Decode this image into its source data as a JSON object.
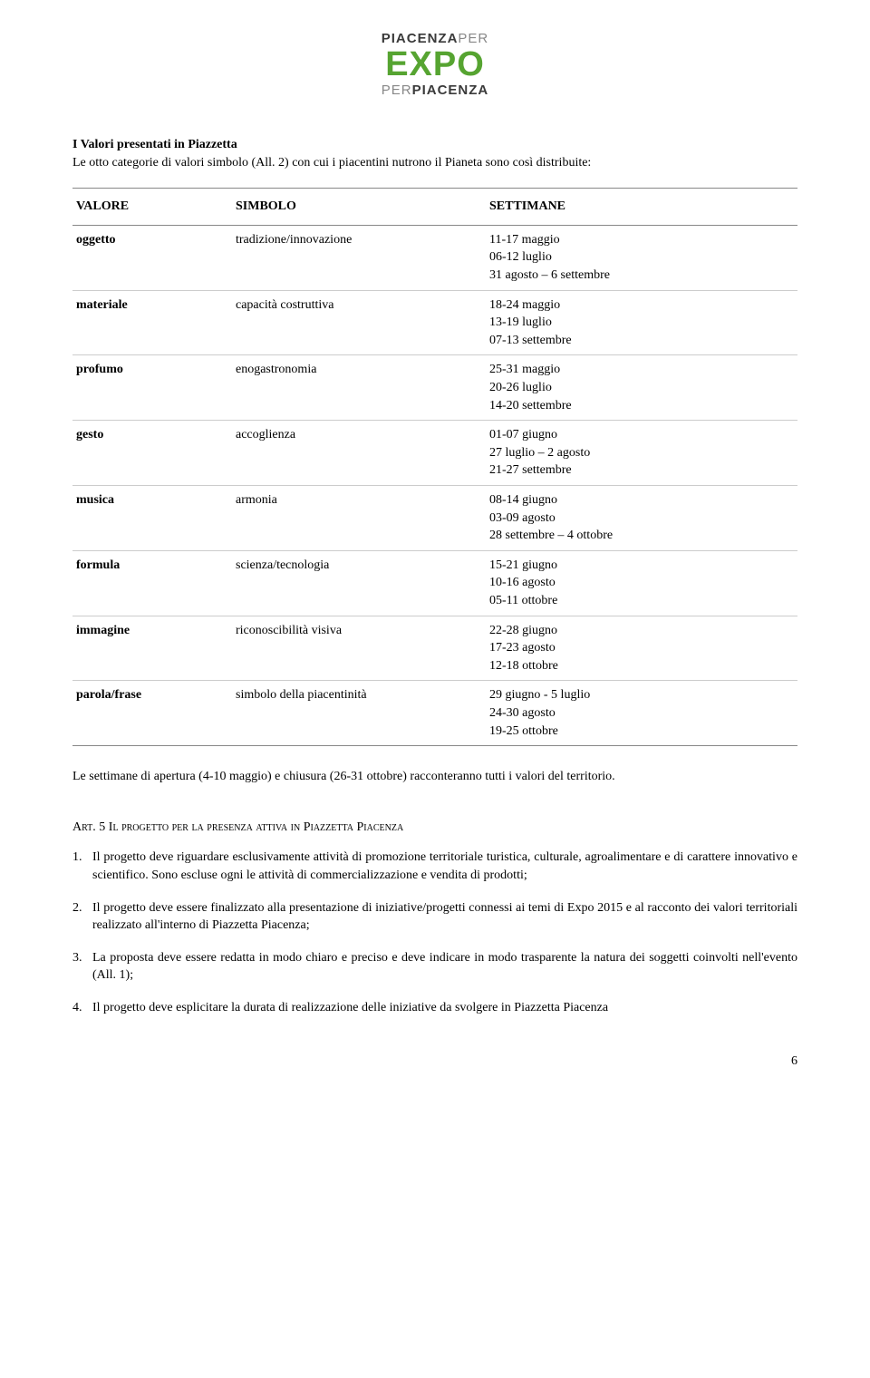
{
  "logo": {
    "line1_bold": "PIACENZA",
    "line1_light": "PER",
    "line2": "EXPO",
    "line3_light": "PER",
    "line3_bold": "PIACENZA"
  },
  "intro": {
    "title": "I Valori presentati in Piazzetta",
    "text": "Le otto categorie di valori simbolo (All. 2) con cui i piacentini nutrono il Pianeta sono così distribuite:"
  },
  "table": {
    "headers": [
      "VALORE",
      "SIMBOLO",
      "SETTIMANE"
    ],
    "rows": [
      {
        "valore": "oggetto",
        "simbolo": "tradizione/innovazione",
        "settimane": "11-17 maggio\n06-12 luglio\n31 agosto – 6 settembre"
      },
      {
        "valore": "materiale",
        "simbolo": "capacità costruttiva",
        "settimane": "18-24 maggio\n13-19 luglio\n07-13 settembre"
      },
      {
        "valore": "profumo",
        "simbolo": "enogastronomia",
        "settimane": "25-31 maggio\n20-26 luglio\n14-20 settembre"
      },
      {
        "valore": "gesto",
        "simbolo": "accoglienza",
        "settimane": "01-07 giugno\n27 luglio – 2 agosto\n21-27 settembre"
      },
      {
        "valore": "musica",
        "simbolo": "armonia",
        "settimane": "08-14 giugno\n03-09 agosto\n28 settembre – 4 ottobre"
      },
      {
        "valore": "formula",
        "simbolo": "scienza/tecnologia",
        "settimane": "15-21 giugno\n10-16 agosto\n05-11 ottobre"
      },
      {
        "valore": "immagine",
        "simbolo": "riconoscibilità visiva",
        "settimane": "22-28 giugno\n17-23 agosto\n12-18 ottobre"
      },
      {
        "valore": "parola/frase",
        "simbolo": "simbolo della piacentinità",
        "settimane": "29 giugno - 5 luglio\n24-30 agosto\n19-25 ottobre"
      }
    ]
  },
  "note": "Le settimane di apertura (4-10 maggio) e chiusura (26-31 ottobre) racconteranno tutti i valori del territorio.",
  "section": {
    "prefix": "Art. 5 ",
    "title": "Il progetto per la presenza attiva in Piazzetta Piacenza"
  },
  "requirements": [
    "Il progetto deve riguardare esclusivamente attività di promozione territoriale turistica, culturale, agroalimentare e di carattere innovativo e scientifico. Sono escluse ogni le attività di commercializzazione e vendita di prodotti;",
    "Il progetto deve essere finalizzato alla presentazione di iniziative/progetti connessi ai temi di Expo 2015 e al racconto dei valori territoriali realizzato all'interno di Piazzetta Piacenza;",
    "La proposta deve essere redatta in modo chiaro e preciso e deve indicare in modo trasparente la natura dei soggetti coinvolti nell'evento (All. 1);",
    "Il progetto deve esplicitare la durata di realizzazione delle iniziative da svolgere in Piazzetta Piacenza"
  ],
  "page_number": "6"
}
